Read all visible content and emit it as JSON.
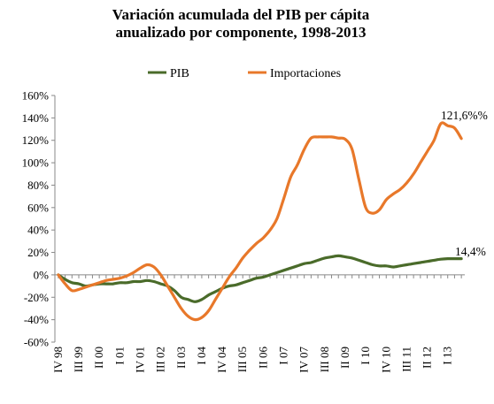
{
  "chart_data": {
    "type": "line",
    "title_line1": "Variación acumulada del PIB per cápita",
    "title_line2": "anualizado por componente, 1998-2013",
    "xlabel": "",
    "ylabel": "",
    "ylim": [
      -60,
      160
    ],
    "yticks": [
      -60,
      -40,
      -20,
      0,
      20,
      40,
      60,
      80,
      100,
      120,
      140,
      160
    ],
    "ytick_labels": [
      "-60%",
      "-40%",
      "-20%",
      "0%",
      "20%",
      "40%",
      "60%",
      "80%",
      "100%",
      "120%",
      "140%",
      "160%"
    ],
    "x_tick_labels": [
      "IV 98",
      "III 99",
      "II 00",
      "I 01",
      "IV 01",
      "III 02",
      "II 03",
      "I 04",
      "IV 04",
      "III 05",
      "II 06",
      "I 07",
      "IV 07",
      "III 08",
      "II 09",
      "I 10",
      "IV 10",
      "III 11",
      "II 12",
      "I 13"
    ],
    "x_tick_step": 3,
    "grid": false,
    "legend_position": "top",
    "annotations": {
      "importaciones_last": "121,6%%",
      "pib_last": "14,4%"
    },
    "series": [
      {
        "name": "PIB",
        "color": "#4a6b2a",
        "values": [
          0,
          -4,
          -7,
          -8,
          -10,
          -9,
          -8,
          -8,
          -8,
          -7,
          -7,
          -6,
          -6,
          -5,
          -6,
          -8,
          -10,
          -14,
          -20,
          -22,
          -24,
          -22,
          -18,
          -15,
          -12,
          -10,
          -9,
          -7,
          -5,
          -3,
          -2,
          0,
          2,
          4,
          6,
          8,
          10,
          11,
          13,
          15,
          16,
          17,
          16,
          15,
          13,
          11,
          9,
          8,
          8,
          7,
          8,
          9,
          10,
          11,
          12,
          13,
          14,
          14.4,
          14.4,
          14.4
        ]
      },
      {
        "name": "Importaciones",
        "color": "#e8782a",
        "values": [
          0,
          -8,
          -14,
          -13,
          -11,
          -9,
          -7,
          -5,
          -4,
          -3,
          -1,
          2,
          6,
          9,
          7,
          0,
          -10,
          -20,
          -30,
          -37,
          -40,
          -38,
          -32,
          -22,
          -12,
          -2,
          6,
          15,
          22,
          28,
          33,
          40,
          50,
          68,
          87,
          98,
          112,
          122,
          123,
          123,
          123,
          122,
          121,
          112,
          85,
          60,
          55,
          58,
          67,
          72,
          76,
          82,
          90,
          100,
          110,
          120,
          135,
          133,
          131,
          121.6
        ]
      }
    ]
  }
}
